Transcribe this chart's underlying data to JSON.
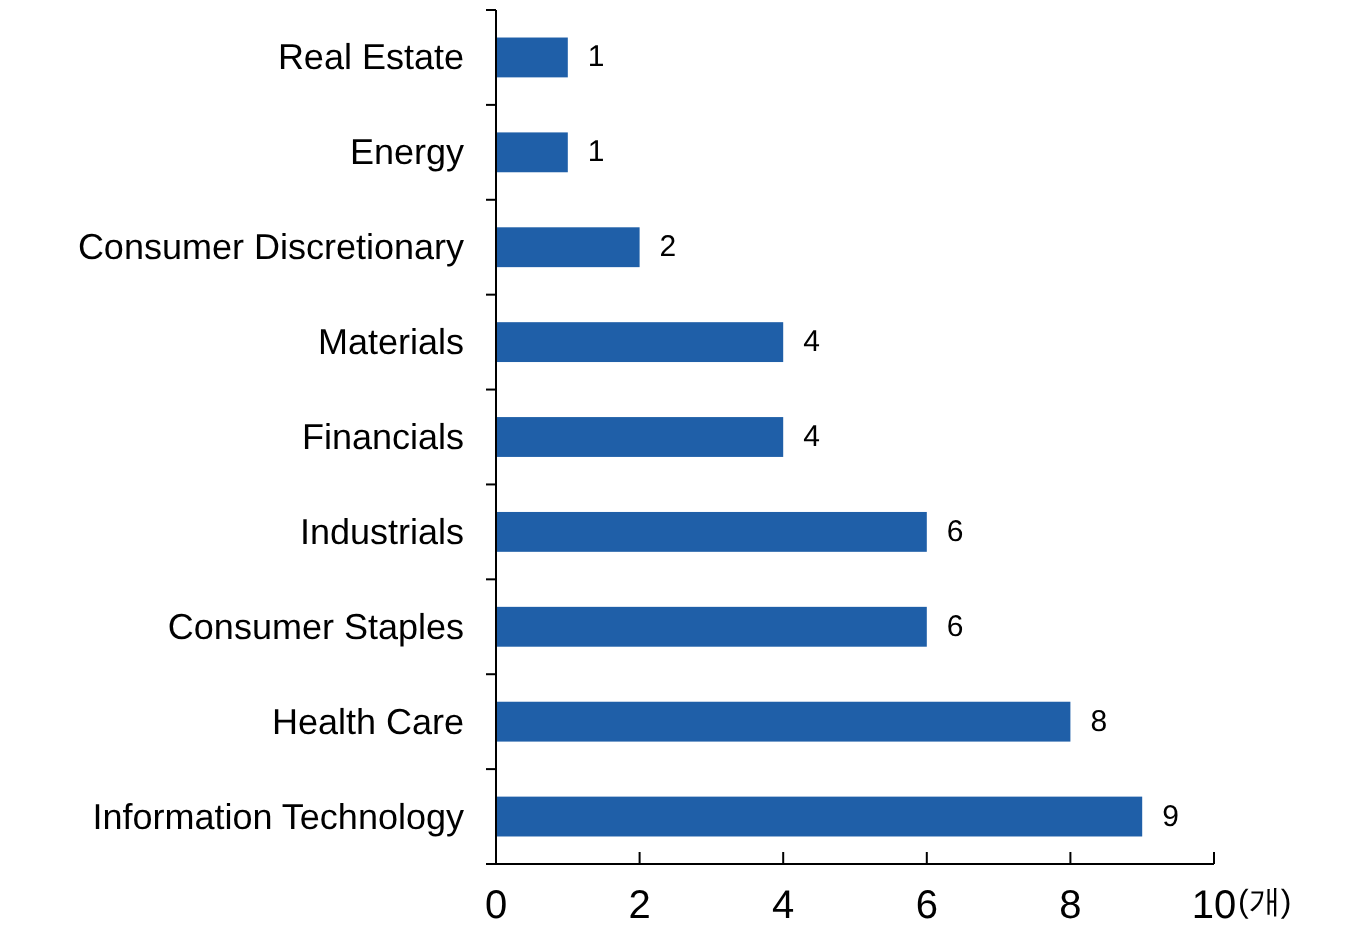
{
  "chart_data": {
    "type": "bar",
    "orientation": "horizontal",
    "xlabel": "(개)",
    "categories": [
      "Real Estate",
      "Energy",
      "Consumer Discretionary",
      "Materials",
      "Financials",
      "Industrials",
      "Consumer Staples",
      "Health Care",
      "Information Technology"
    ],
    "values": [
      1,
      1,
      2,
      4,
      4,
      6,
      6,
      8,
      9
    ],
    "color": "#1f5fa8",
    "xlim": [
      0,
      10
    ],
    "xticks": [
      0,
      2,
      4,
      6,
      8,
      10
    ],
    "data_labels": true
  }
}
